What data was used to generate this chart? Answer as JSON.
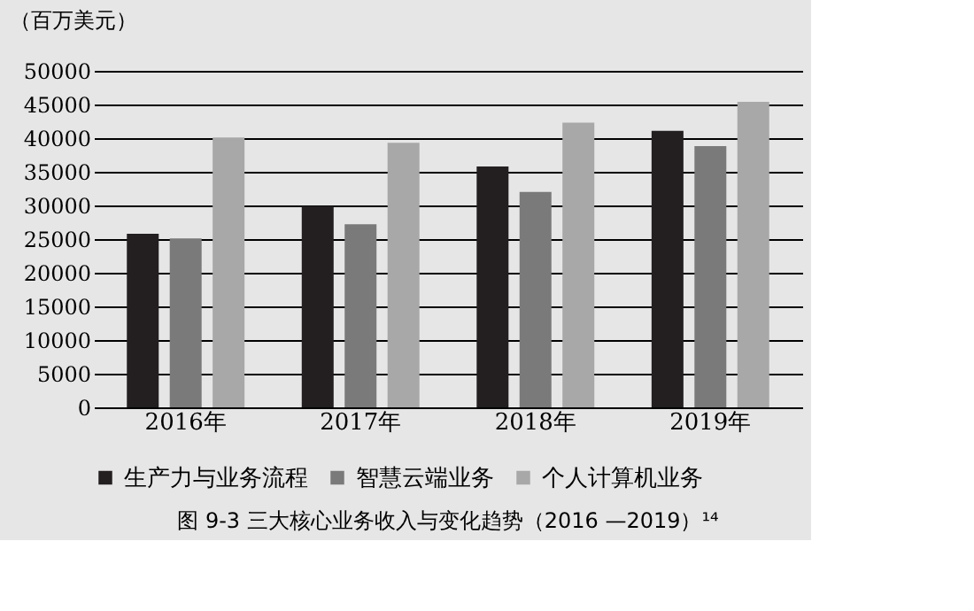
{
  "chart_data": {
    "type": "bar",
    "title": "图 9-3  三大核心业务收入与变化趋势（2016 —2019）¹⁴",
    "ylabel": "（百万美元）",
    "categories": [
      "2016年",
      "2017年",
      "2018年",
      "2019年"
    ],
    "series": [
      {
        "name": "生产力与业务流程",
        "color": "#231f20",
        "values": [
          25800,
          29900,
          35800,
          41100
        ]
      },
      {
        "name": "智慧云端业务",
        "color": "#7a7a7a",
        "values": [
          25100,
          27200,
          32000,
          38800
        ]
      },
      {
        "name": "个人计算机业务",
        "color": "#a8a8a8",
        "values": [
          40100,
          39300,
          42300,
          45400
        ]
      }
    ],
    "ylim": [
      0,
      50000
    ],
    "yticks": [
      0,
      5000,
      10000,
      15000,
      20000,
      25000,
      30000,
      35000,
      40000,
      45000,
      50000
    ],
    "grid": "y",
    "legend": "bottom"
  }
}
